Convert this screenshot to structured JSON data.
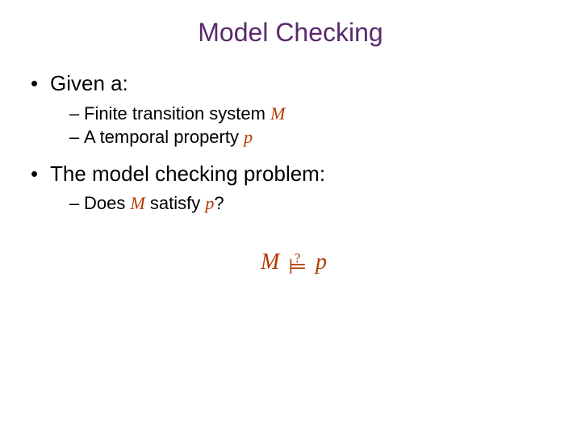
{
  "colors": {
    "title": "#5a2a6b",
    "body_text": "#000000",
    "accent": "#b33a00",
    "background": "#ffffff"
  },
  "typography": {
    "title_fontsize": 32,
    "l1_fontsize": 26,
    "l2_fontsize": 22,
    "formula_fontsize": 28,
    "body_font": "Verdana",
    "math_font": "Times New Roman"
  },
  "title": "Model Checking",
  "bullets": [
    {
      "text": "Given a:",
      "sub": [
        {
          "prefix": "Finite transition system ",
          "var": "M",
          "suffix": ""
        },
        {
          "prefix": "A temporal property ",
          "var": "p",
          "suffix": ""
        }
      ]
    },
    {
      "text": "The model checking problem:",
      "sub": [
        {
          "prefix": "Does ",
          "var": "M",
          "mid": " satisfy ",
          "var2": "p",
          "suffix": "?"
        }
      ]
    }
  ],
  "formula": {
    "left": "M",
    "question": "?",
    "relation": "⊨",
    "right": "p"
  }
}
